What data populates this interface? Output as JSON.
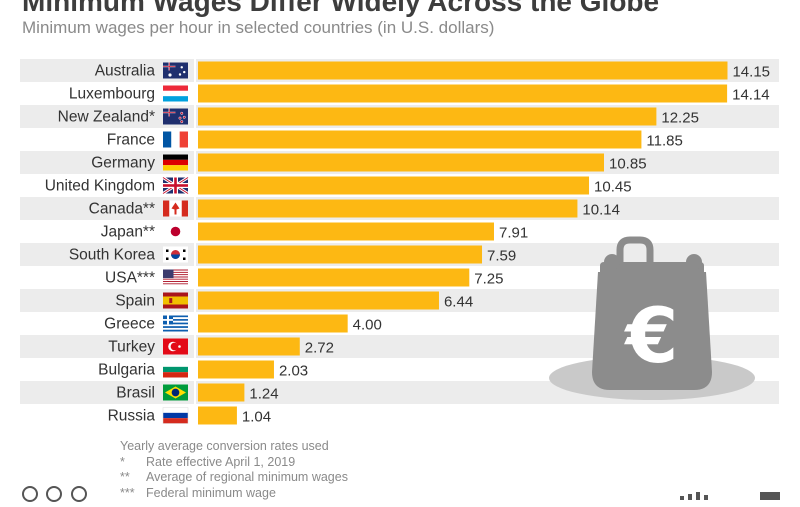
{
  "title": "Minimum Wages Differ Widely Across the Globe",
  "subtitle": "Minimum wages per hour in selected countries (in U.S. dollars)",
  "chart_data": {
    "type": "bar",
    "orientation": "horizontal",
    "title": "Minimum Wages Differ Widely Across the Globe",
    "subtitle": "Minimum wages per hour in selected countries (in U.S. dollars)",
    "categories": [
      "Australia",
      "Luxembourg",
      "New Zealand*",
      "France",
      "Germany",
      "United Kingdom",
      "Canada**",
      "Japan**",
      "South Korea",
      "USA***",
      "Spain",
      "Greece",
      "Turkey",
      "Bulgaria",
      "Brasil",
      "Russia"
    ],
    "values": [
      14.15,
      14.14,
      12.25,
      11.85,
      10.85,
      10.45,
      10.14,
      7.91,
      7.59,
      7.25,
      6.44,
      4.0,
      2.72,
      2.03,
      1.24,
      1.04
    ],
    "data_labels": [
      "14.15",
      "14.14",
      "12.25",
      "11.85",
      "10.85",
      "10.45",
      "10.14",
      "7.91",
      "7.59",
      "7.25",
      "6.44",
      "4.00",
      "2.72",
      "2.03",
      "1.24",
      "1.04"
    ],
    "xlim": [
      0,
      15.5
    ],
    "bar_color": "#fdb813",
    "row_shading": "alternating light gray",
    "grid": false,
    "legend": "none"
  },
  "footnotes": [
    {
      "mark": "",
      "text": "Yearly average conversion rates used"
    },
    {
      "mark": "*",
      "text": "Rate effective April 1, 2019"
    },
    {
      "mark": "**",
      "text": "Average of regional minimum wages"
    },
    {
      "mark": "***",
      "text": "Federal minimum wage"
    }
  ],
  "flags": [
    "australia-flag-icon",
    "luxembourg-flag-icon",
    "new-zealand-flag-icon",
    "france-flag-icon",
    "germany-flag-icon",
    "uk-flag-icon",
    "canada-flag-icon",
    "japan-flag-icon",
    "south-korea-flag-icon",
    "usa-flag-icon",
    "spain-flag-icon",
    "greece-flag-icon",
    "turkey-flag-icon",
    "bulgaria-flag-icon",
    "brazil-flag-icon",
    "russia-flag-icon"
  ],
  "illustration": "euro-coin-purse-icon",
  "colors": {
    "bar": "#fdb813",
    "row_shade": "#ececec",
    "label": "#333333",
    "illustration": "#8c8c8c"
  }
}
